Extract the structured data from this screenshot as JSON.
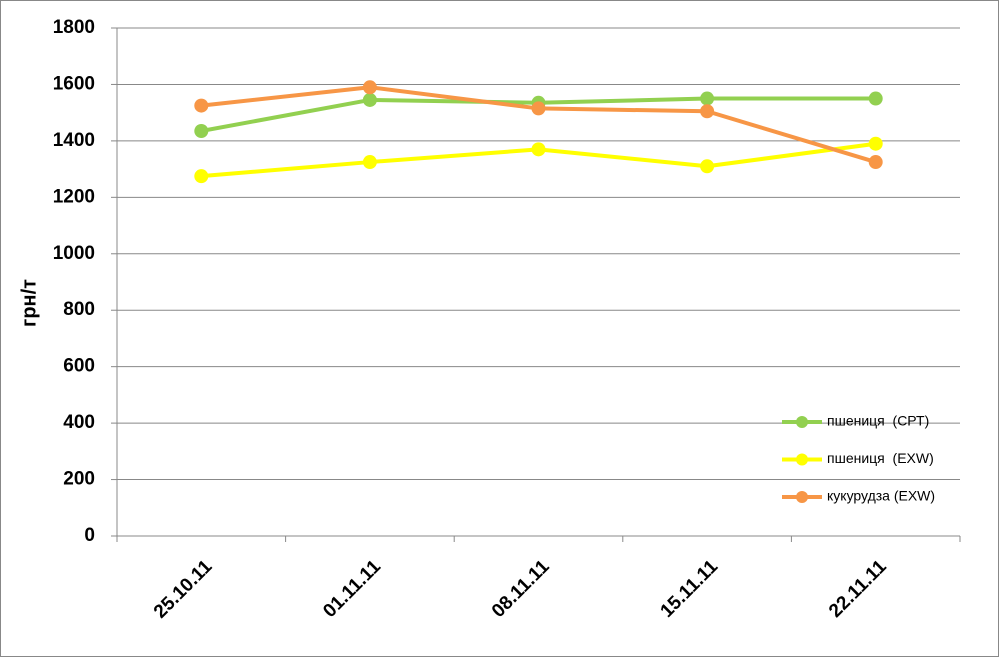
{
  "chart_data": {
    "type": "line",
    "y_label": "грн/т",
    "categories": [
      "25.10.11",
      "01.11.11",
      "08.11.11",
      "15.11.11",
      "22.11.11"
    ],
    "series": [
      {
        "name": "пшениця  (СРТ)",
        "color": "#92d050",
        "values": [
          1435,
          1545,
          1535,
          1550,
          1550
        ]
      },
      {
        "name": "пшениця  (EXW)",
        "color": "#ffff00",
        "values": [
          1275,
          1325,
          1370,
          1310,
          1390
        ]
      },
      {
        "name": "кукурудза (EXW)",
        "color": "#f79646",
        "values": [
          1525,
          1590,
          1515,
          1505,
          1325
        ]
      }
    ],
    "ylim": [
      0,
      1800
    ],
    "yticks": [
      0,
      200,
      400,
      600,
      800,
      1000,
      1200,
      1400,
      1600,
      1800
    ],
    "grid": true,
    "legend": "lower right"
  }
}
